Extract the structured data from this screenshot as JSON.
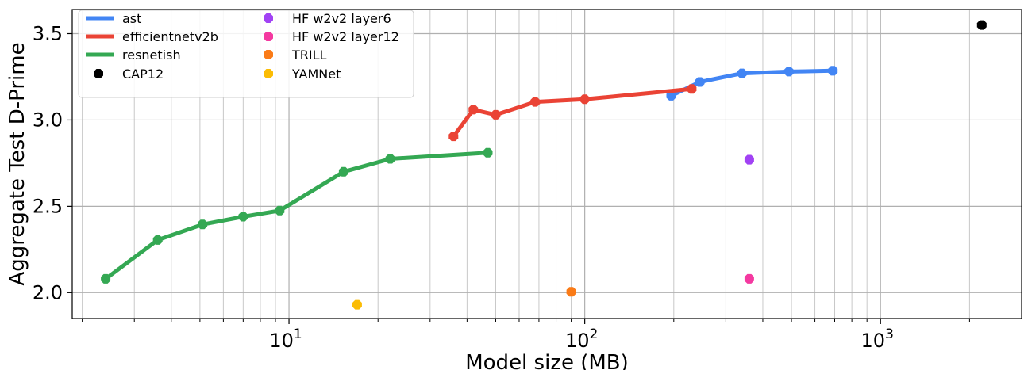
{
  "chart_data": {
    "type": "scatter",
    "xlabel": "Model size (MB)",
    "ylabel": "Aggregate Test D-Prime",
    "xscale": "log",
    "xlim": [
      1.85,
      3000
    ],
    "ylim": [
      1.85,
      3.64
    ],
    "grid": true,
    "legend_position": "upper-left",
    "xticks": [
      {
        "value": 10,
        "base": "10",
        "exp": "1"
      },
      {
        "value": 100,
        "base": "10",
        "exp": "2"
      },
      {
        "value": 1000,
        "base": "10",
        "exp": "3"
      }
    ],
    "yticks": [
      {
        "value": 2.0,
        "label": "2.0"
      },
      {
        "value": 2.5,
        "label": "2.5"
      },
      {
        "value": 3.0,
        "label": "3.0"
      },
      {
        "value": 3.5,
        "label": "3.5"
      }
    ],
    "series": [
      {
        "name": "ast",
        "kind": "line",
        "color": "#4285f4",
        "x": [
          196,
          245,
          340,
          490,
          690
        ],
        "y": [
          3.14,
          3.22,
          3.27,
          3.28,
          3.285
        ]
      },
      {
        "name": "efficientnetv2b",
        "kind": "line",
        "color": "#ea4335",
        "x": [
          36,
          42,
          50,
          68,
          100,
          230
        ],
        "y": [
          2.905,
          3.06,
          3.03,
          3.105,
          3.12,
          3.18
        ]
      },
      {
        "name": "resnetish",
        "kind": "line",
        "color": "#34a853",
        "x": [
          2.4,
          3.6,
          5.1,
          7.0,
          9.3,
          15.3,
          22.0,
          47.0
        ],
        "y": [
          2.08,
          2.305,
          2.395,
          2.44,
          2.475,
          2.7,
          2.775,
          2.81
        ]
      },
      {
        "name": "CAP12",
        "kind": "point",
        "color": "#000000",
        "x": [
          2200
        ],
        "y": [
          3.55
        ]
      },
      {
        "name": "HF w2v2 layer6",
        "kind": "point",
        "color": "#a142f4",
        "x": [
          360
        ],
        "y": [
          2.77
        ]
      },
      {
        "name": "HF w2v2 layer12",
        "kind": "point",
        "color": "#f439a0",
        "x": [
          360
        ],
        "y": [
          2.08
        ]
      },
      {
        "name": "TRILL",
        "kind": "point",
        "color": "#fa7b17",
        "x": [
          90
        ],
        "y": [
          2.005
        ]
      },
      {
        "name": "YAMNet",
        "kind": "point",
        "color": "#fbbc04",
        "x": [
          17
        ],
        "y": [
          1.93
        ]
      }
    ]
  }
}
